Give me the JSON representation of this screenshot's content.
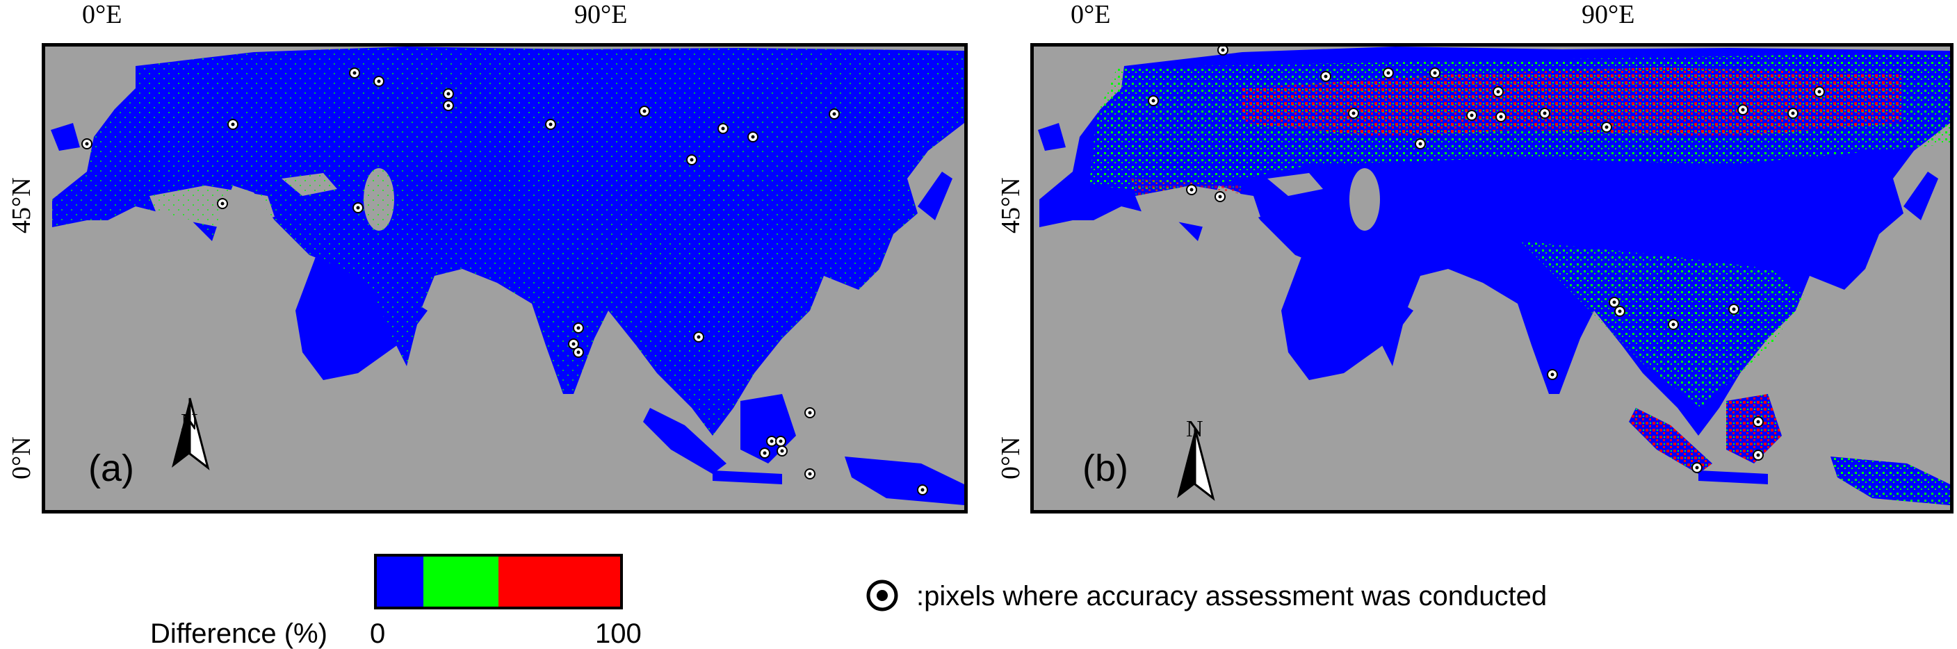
{
  "panels": [
    {
      "id": "a",
      "letter": "(a)",
      "lon_labels": [
        "0°E",
        "90°E"
      ],
      "lat_labels": [
        "45°N",
        "0°N"
      ],
      "north_label": "N"
    },
    {
      "id": "b",
      "letter": "(b)",
      "lon_labels": [
        "0°E",
        "90°E"
      ],
      "lat_labels": [
        "45°N",
        "0°N"
      ],
      "north_label": "N"
    }
  ],
  "legend": {
    "title": "Difference (%)",
    "min_label": "0",
    "max_label": "100",
    "classes": [
      {
        "color": "#0000ff",
        "share": 0.19
      },
      {
        "color": "#00ff00",
        "share": 0.31
      },
      {
        "color": "#ff0000",
        "share": 0.5
      }
    ]
  },
  "site_marker_note": ":pixels where accuracy assessment was conducted",
  "colors": {
    "ocean": "#a0a0a0",
    "low": "#0000ff",
    "mid": "#00ff00",
    "high": "#ff0000",
    "marker": "#ffffff"
  }
}
